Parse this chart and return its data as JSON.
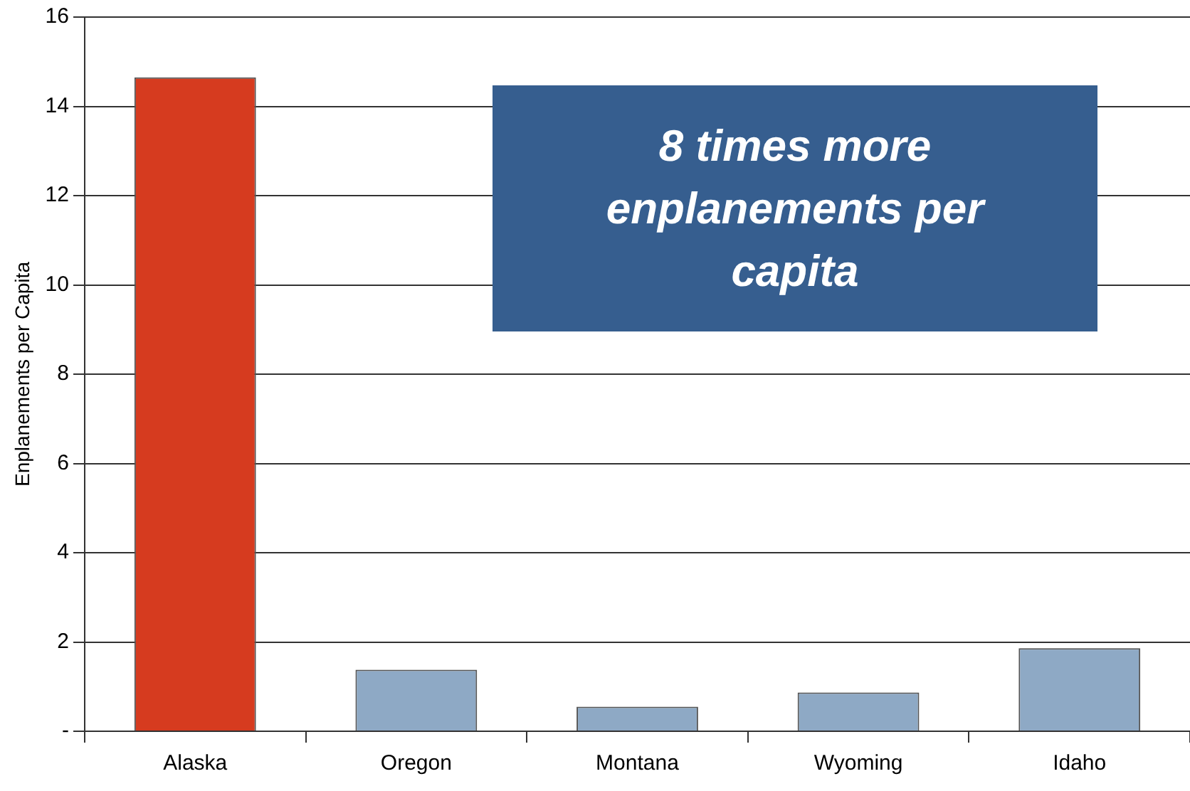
{
  "chart_data": {
    "type": "bar",
    "ylabel": "Enplanements per Capita",
    "categories": [
      "Alaska",
      "Oregon",
      "Montana",
      "Wyoming",
      "Idaho"
    ],
    "values": [
      14.65,
      1.38,
      0.55,
      0.87,
      1.86
    ],
    "colors": [
      "#d63b1f",
      "#8ea9c5",
      "#8ea9c5",
      "#8ea9c5",
      "#8ea9c5"
    ],
    "ylim": [
      0,
      16
    ],
    "yticks": [
      {
        "value": 0,
        "label": "-"
      },
      2,
      4,
      6,
      8,
      10,
      12,
      14,
      16
    ],
    "grid": "y",
    "annotations": [
      "8 times more enplanements per capita"
    ]
  }
}
